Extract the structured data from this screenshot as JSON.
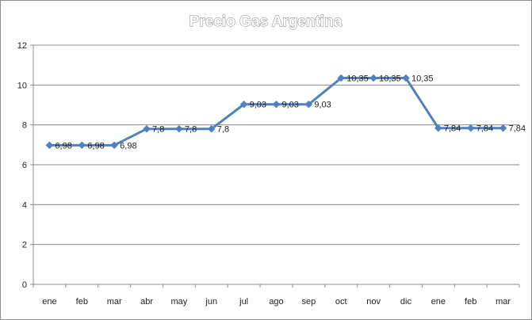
{
  "chart_data": {
    "type": "line",
    "title": "Precio Gas Argentina",
    "xlabel": "",
    "ylabel": "",
    "categories": [
      "ene",
      "feb",
      "mar",
      "abr",
      "may",
      "jun",
      "jul",
      "ago",
      "sep",
      "oct",
      "nov",
      "dic",
      "ene",
      "feb",
      "mar"
    ],
    "series": [
      {
        "values": [
          6.98,
          6.98,
          6.98,
          7.8,
          7.8,
          7.8,
          9.03,
          9.03,
          9.03,
          10.35,
          10.35,
          10.35,
          7.84,
          7.84,
          7.84
        ],
        "labels": [
          "6,98",
          "6,98",
          "6,98",
          "7,8",
          "7,8",
          "7,8",
          "9,03",
          "9,03",
          "9,03",
          "10,35",
          "10,35",
          "10,35",
          "7,84",
          "7,84",
          "7,84"
        ]
      }
    ],
    "ylim": [
      0,
      12
    ],
    "yticks": [
      0,
      2,
      4,
      6,
      8,
      10,
      12
    ],
    "grid": true,
    "legend": "none",
    "colors": {
      "line": "#4f81bd",
      "grid": "#8c8c8c"
    }
  }
}
